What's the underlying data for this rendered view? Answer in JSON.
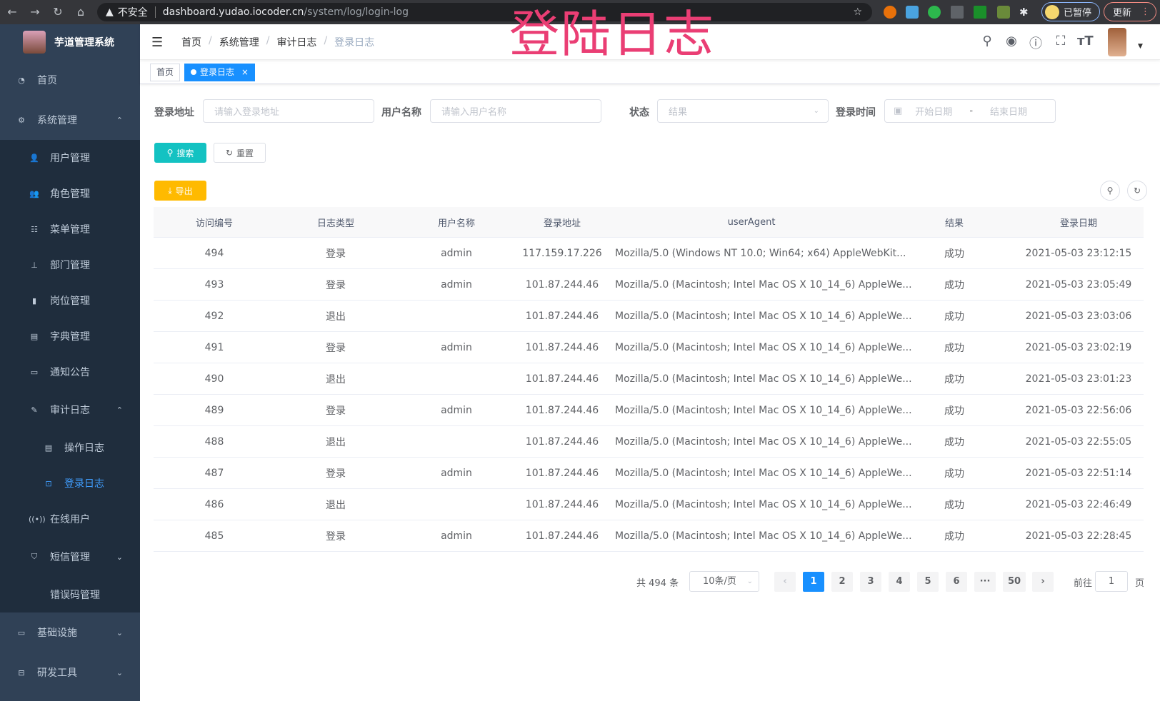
{
  "browser": {
    "security": "不安全",
    "host": "dashboard.yudao.iocoder.cn",
    "path": "/system/log/login-log",
    "profile": "已暂停",
    "update": "更新"
  },
  "overlay_title": "登陆日志",
  "sidebar": {
    "logo": "芋道管理系统",
    "items": [
      {
        "label": "首页",
        "icon": "dashboard-icon"
      },
      {
        "label": "系统管理",
        "icon": "gear-icon",
        "expanded": true
      },
      {
        "label": "用户管理",
        "icon": "user-icon"
      },
      {
        "label": "角色管理",
        "icon": "peoples-icon"
      },
      {
        "label": "菜单管理",
        "icon": "tree-table-icon"
      },
      {
        "label": "部门管理",
        "icon": "tree-icon"
      },
      {
        "label": "岗位管理",
        "icon": "post-icon"
      },
      {
        "label": "字典管理",
        "icon": "dict-icon"
      },
      {
        "label": "通知公告",
        "icon": "message-icon"
      },
      {
        "label": "审计日志",
        "icon": "log-icon",
        "expanded": true
      },
      {
        "label": "操作日志",
        "icon": "form-icon"
      },
      {
        "label": "登录日志",
        "icon": "logininfor-icon",
        "active": true
      },
      {
        "label": "在线用户",
        "icon": "online-icon"
      },
      {
        "label": "短信管理",
        "icon": "validcode-icon"
      },
      {
        "label": "错误码管理",
        "icon": "code-icon"
      },
      {
        "label": "基础设施",
        "icon": "monitor-icon"
      },
      {
        "label": "研发工具",
        "icon": "tool-icon"
      }
    ]
  },
  "breadcrumb": [
    "首页",
    "系统管理",
    "审计日志",
    "登录日志"
  ],
  "breadcrumb_sep": "/",
  "tags": [
    {
      "label": "首页"
    },
    {
      "label": "登录日志",
      "close": "×"
    }
  ],
  "filters": {
    "address": {
      "label": "登录地址",
      "placeholder": "请输入登录地址"
    },
    "username": {
      "label": "用户名称",
      "placeholder": "请输入用户名称"
    },
    "status": {
      "label": "状态",
      "placeholder": "结果"
    },
    "time": {
      "label": "登录时间",
      "start": "开始日期",
      "sep": "-",
      "end": "结束日期"
    }
  },
  "buttons": {
    "search": "搜索",
    "reset": "重置",
    "export": "导出"
  },
  "accent": "#1890ff",
  "search_color": "#13c2c2",
  "export_color": "#ffba00",
  "table": {
    "columns": [
      "访问编号",
      "日志类型",
      "用户名称",
      "登录地址",
      "userAgent",
      "结果",
      "登录日期"
    ],
    "rows": [
      [
        "494",
        "登录",
        "admin",
        "117.159.17.226",
        "Mozilla/5.0 (Windows NT 10.0; Win64; x64) AppleWebKit...",
        "成功",
        "2021-05-03 23:12:15"
      ],
      [
        "493",
        "登录",
        "admin",
        "101.87.244.46",
        "Mozilla/5.0 (Macintosh; Intel Mac OS X 10_14_6) AppleWe...",
        "成功",
        "2021-05-03 23:05:49"
      ],
      [
        "492",
        "退出",
        "",
        "101.87.244.46",
        "Mozilla/5.0 (Macintosh; Intel Mac OS X 10_14_6) AppleWe...",
        "成功",
        "2021-05-03 23:03:06"
      ],
      [
        "491",
        "登录",
        "admin",
        "101.87.244.46",
        "Mozilla/5.0 (Macintosh; Intel Mac OS X 10_14_6) AppleWe...",
        "成功",
        "2021-05-03 23:02:19"
      ],
      [
        "490",
        "退出",
        "",
        "101.87.244.46",
        "Mozilla/5.0 (Macintosh; Intel Mac OS X 10_14_6) AppleWe...",
        "成功",
        "2021-05-03 23:01:23"
      ],
      [
        "489",
        "登录",
        "admin",
        "101.87.244.46",
        "Mozilla/5.0 (Macintosh; Intel Mac OS X 10_14_6) AppleWe...",
        "成功",
        "2021-05-03 22:56:06"
      ],
      [
        "488",
        "退出",
        "",
        "101.87.244.46",
        "Mozilla/5.0 (Macintosh; Intel Mac OS X 10_14_6) AppleWe...",
        "成功",
        "2021-05-03 22:55:05"
      ],
      [
        "487",
        "登录",
        "admin",
        "101.87.244.46",
        "Mozilla/5.0 (Macintosh; Intel Mac OS X 10_14_6) AppleWe...",
        "成功",
        "2021-05-03 22:51:14"
      ],
      [
        "486",
        "退出",
        "",
        "101.87.244.46",
        "Mozilla/5.0 (Macintosh; Intel Mac OS X 10_14_6) AppleWe...",
        "成功",
        "2021-05-03 22:46:49"
      ],
      [
        "485",
        "登录",
        "admin",
        "101.87.244.46",
        "Mozilla/5.0 (Macintosh; Intel Mac OS X 10_14_6) AppleWe...",
        "成功",
        "2021-05-03 22:28:45"
      ]
    ]
  },
  "pagination": {
    "total": "共 494 条",
    "page_size": "10条/页",
    "pages": [
      "1",
      "2",
      "3",
      "4",
      "5",
      "6",
      "···",
      "50"
    ],
    "current": "1",
    "goto_prefix": "前往",
    "goto_value": "1",
    "goto_suffix": "页"
  }
}
